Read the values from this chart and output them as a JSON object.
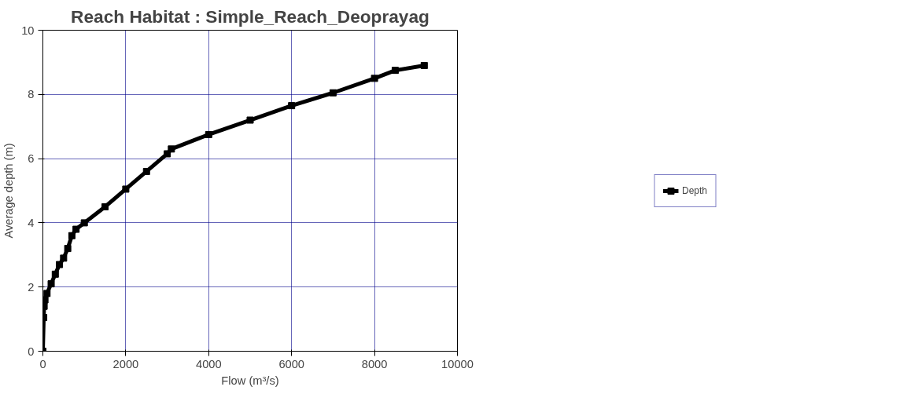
{
  "chart_data": {
    "type": "line",
    "title": "Reach Habitat : Simple_Reach_Deoprayag",
    "xlabel": "Flow (m³/s)",
    "ylabel": "Average depth (m)",
    "x": [
      0,
      20,
      30,
      50,
      100,
      200,
      300,
      400,
      500,
      600,
      700,
      800,
      1000,
      1500,
      2000,
      2500,
      3000,
      3100,
      4000,
      5000,
      6000,
      7000,
      8000,
      8500,
      9200
    ],
    "series": [
      {
        "name": "Depth",
        "color": "#000000",
        "values": [
          0,
          1.05,
          1.4,
          1.6,
          1.8,
          2.1,
          2.4,
          2.7,
          2.9,
          3.2,
          3.6,
          3.8,
          4.0,
          4.5,
          5.05,
          5.6,
          6.15,
          6.3,
          6.75,
          7.2,
          7.65,
          8.05,
          8.5,
          8.75,
          8.9
        ]
      }
    ],
    "xlim": [
      0,
      10000
    ],
    "xticks": [
      0,
      2000,
      4000,
      6000,
      8000,
      10000
    ],
    "ylim": [
      0,
      10
    ],
    "yticks": [
      0,
      2,
      4,
      6,
      8,
      10
    ],
    "grid": true,
    "legend": "right",
    "marker": "square",
    "line_style": "solid"
  }
}
